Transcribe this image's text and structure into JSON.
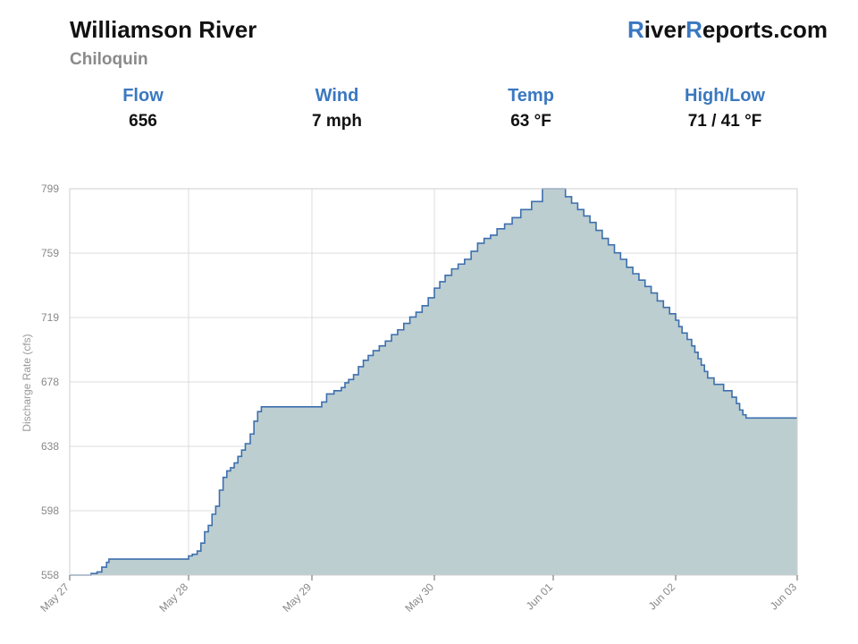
{
  "header": {
    "title": "Williamson River",
    "subtitle": "Chiloquin",
    "brand_r1": "R",
    "brand_mid1": "iver",
    "brand_r2": "R",
    "brand_mid2": "eports.com"
  },
  "stats": [
    {
      "label": "Flow",
      "value": "656"
    },
    {
      "label": "Wind",
      "value": "7 mph"
    },
    {
      "label": "Temp",
      "value": "63 °F"
    },
    {
      "label": "High/Low",
      "value": "71 / 41 °F"
    }
  ],
  "colors": {
    "accent": "#3a78c0",
    "line": "#3d6fae",
    "fill": "#b8cbcd"
  },
  "chart_data": {
    "type": "area",
    "title": "",
    "xlabel": "",
    "ylabel": "Discharge Rate (cfs)",
    "ylim": [
      558,
      799
    ],
    "xlim": [
      "May 27",
      "Jun 03"
    ],
    "yticks": [
      "558",
      "598",
      "638",
      "678",
      "719",
      "759",
      "799"
    ],
    "xticks": [
      "May 27",
      "May 28",
      "May 29",
      "May 30",
      "Jun 01",
      "Jun 02",
      "Jun 03"
    ],
    "grid": true,
    "series": [
      {
        "x_days": [
          0,
          0.18,
          0.23,
          0.27,
          0.31,
          0.33,
          1.0,
          1.03,
          1.07,
          1.1,
          1.13,
          1.16,
          1.19,
          1.22,
          1.25,
          1.28,
          1.31,
          1.34,
          1.37,
          1.4,
          1.43,
          1.46,
          1.5,
          1.53,
          1.56,
          1.59,
          2.0,
          2.08,
          2.12,
          2.18,
          2.24,
          2.27,
          2.3,
          2.34,
          2.38,
          2.42,
          2.46,
          2.5,
          2.55,
          2.6,
          2.65,
          2.7,
          2.75,
          2.8,
          2.85,
          2.9,
          2.95,
          3.0,
          3.05,
          3.1,
          3.16,
          3.22,
          3.28,
          3.34,
          3.4,
          3.46,
          3.52,
          3.58,
          3.65,
          3.72,
          3.8,
          3.9,
          4.0,
          4.1,
          4.16,
          4.2,
          4.25,
          4.3,
          4.35,
          4.4,
          4.45,
          4.5,
          4.55,
          4.6,
          4.65,
          4.7,
          4.75,
          4.8,
          4.85,
          4.9,
          4.95,
          5.0,
          5.05,
          5.1,
          5.15,
          5.2,
          5.28,
          5.35,
          5.4,
          5.45,
          5.5,
          5.55,
          5.6,
          5.7,
          5.85,
          5.98,
          6.05,
          6.1,
          6.15,
          6.2,
          6.4,
          6.5,
          6.56,
          6.62,
          6.68,
          6.8,
          6.9,
          7.0
        ],
        "values": [
          558,
          559,
          560,
          563,
          566,
          568,
          570,
          571,
          573,
          578,
          585,
          589,
          596,
          601,
          611,
          619,
          623,
          625,
          628,
          632,
          636,
          640,
          646,
          654,
          660,
          663,
          663,
          666,
          671,
          673,
          675,
          678,
          680,
          683,
          688,
          692,
          695,
          698,
          701,
          704,
          708,
          711,
          715,
          719,
          722,
          726,
          731,
          737,
          741,
          745,
          749,
          752,
          755,
          760,
          765,
          768,
          770,
          774,
          777,
          781,
          786,
          791,
          799,
          799,
          799,
          794,
          790,
          786,
          782,
          778,
          773,
          768,
          764,
          759,
          755,
          750,
          746,
          742,
          738,
          734,
          729,
          725,
          721,
          717,
          713,
          709,
          705,
          701,
          697,
          693,
          689,
          685,
          681,
          677,
          673,
          669,
          665,
          661,
          658,
          656,
          656,
          656,
          656,
          656,
          656,
          656,
          656,
          656
        ]
      }
    ]
  }
}
